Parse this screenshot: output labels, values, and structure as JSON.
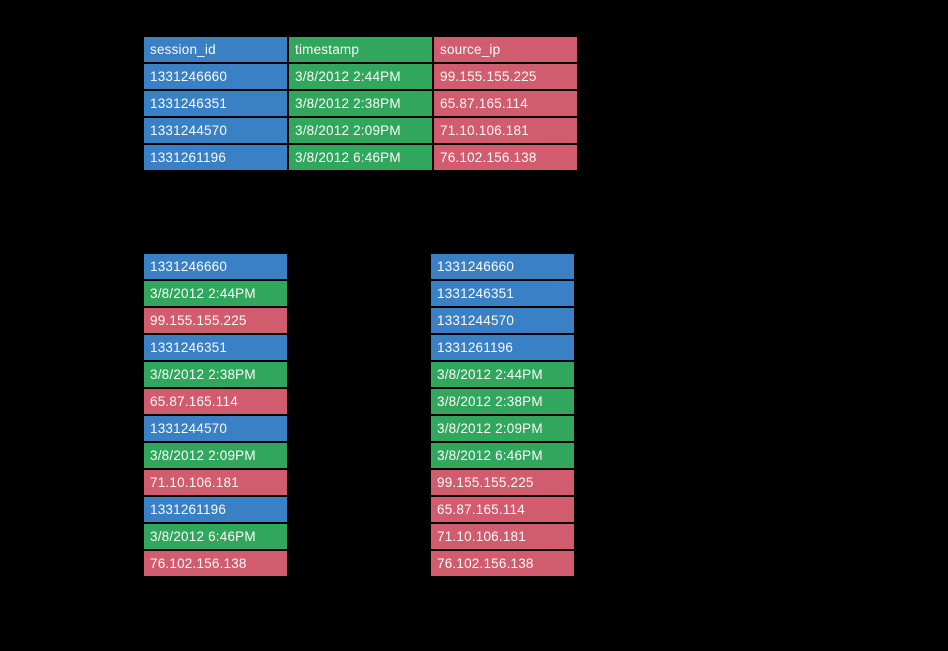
{
  "colors": {
    "background": "#000000",
    "text": "#FAFAFA",
    "session_id": "#3A80C4",
    "timestamp": "#30A75C",
    "source_ip": "#D15C6E"
  },
  "table": {
    "columns": [
      {
        "label": "session_id"
      },
      {
        "label": "timestamp"
      },
      {
        "label": "source_ip"
      }
    ],
    "rows": [
      {
        "session_id": "1331246660",
        "timestamp": "3/8/2012 2:44PM",
        "source_ip": "99.155.155.225"
      },
      {
        "session_id": "1331246351",
        "timestamp": "3/8/2012 2:38PM",
        "source_ip": "65.87.165.114"
      },
      {
        "session_id": "1331244570",
        "timestamp": "3/8/2012 2:09PM",
        "source_ip": "71.10.106.181"
      },
      {
        "session_id": "1331261196",
        "timestamp": "3/8/2012 6:46PM",
        "source_ip": "76.102.156.138"
      }
    ]
  },
  "row_oriented_stack": {
    "cells": [
      {
        "field": "session_id",
        "value": "1331246660"
      },
      {
        "field": "timestamp",
        "value": "3/8/2012 2:44PM"
      },
      {
        "field": "source_ip",
        "value": "99.155.155.225"
      },
      {
        "field": "session_id",
        "value": "1331246351"
      },
      {
        "field": "timestamp",
        "value": "3/8/2012 2:38PM"
      },
      {
        "field": "source_ip",
        "value": "65.87.165.114"
      },
      {
        "field": "session_id",
        "value": "1331244570"
      },
      {
        "field": "timestamp",
        "value": "3/8/2012 2:09PM"
      },
      {
        "field": "source_ip",
        "value": "71.10.106.181"
      },
      {
        "field": "session_id",
        "value": "1331261196"
      },
      {
        "field": "timestamp",
        "value": "3/8/2012 6:46PM"
      },
      {
        "field": "source_ip",
        "value": "76.102.156.138"
      }
    ]
  },
  "column_oriented_stack": {
    "cells": [
      {
        "field": "session_id",
        "value": "1331246660"
      },
      {
        "field": "session_id",
        "value": "1331246351"
      },
      {
        "field": "session_id",
        "value": "1331244570"
      },
      {
        "field": "session_id",
        "value": "1331261196"
      },
      {
        "field": "timestamp",
        "value": "3/8/2012 2:44PM"
      },
      {
        "field": "timestamp",
        "value": "3/8/2012 2:38PM"
      },
      {
        "field": "timestamp",
        "value": "3/8/2012 2:09PM"
      },
      {
        "field": "timestamp",
        "value": "3/8/2012 6:46PM"
      },
      {
        "field": "source_ip",
        "value": "99.155.155.225"
      },
      {
        "field": "source_ip",
        "value": "65.87.165.114"
      },
      {
        "field": "source_ip",
        "value": "71.10.106.181"
      },
      {
        "field": "source_ip",
        "value": "76.102.156.138"
      }
    ]
  }
}
